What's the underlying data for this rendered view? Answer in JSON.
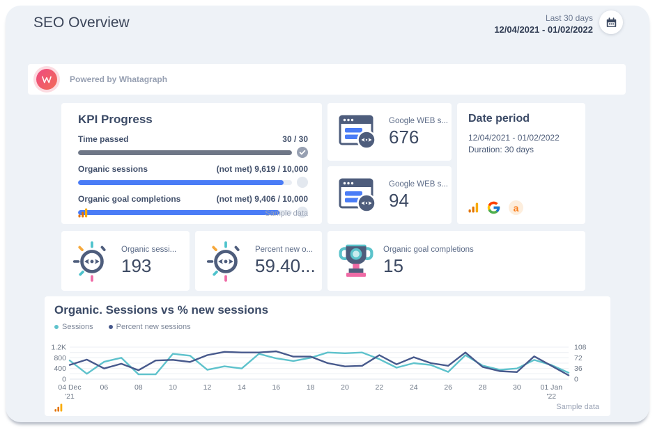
{
  "header": {
    "title": "SEO Overview",
    "range_label": "Last 30 days",
    "range_dates": "12/04/2021 - 01/02/2022"
  },
  "powered_bar": {
    "text": "Powered by Whatagraph"
  },
  "kpi_card": {
    "title": "KPI Progress",
    "rows": [
      {
        "label": "Time passed",
        "value": "30 / 30",
        "pct": 100,
        "status": "met"
      },
      {
        "label": "Organic sessions",
        "value": "(not met) 9,619 / 10,000",
        "pct": 96.2,
        "status": "not met"
      },
      {
        "label": "Organic goal completions",
        "value": "(not met) 9,406 / 10,000",
        "pct": 94.1,
        "status": "not met"
      }
    ],
    "footer_note": "Sample data"
  },
  "stat_cards": {
    "web_sessions_1": {
      "label": "Google WEB s...",
      "value": "676"
    },
    "web_sessions_2": {
      "label": "Google WEB s...",
      "value": "94"
    },
    "organic_sessions": {
      "label": "Organic sessi...",
      "value": "193"
    },
    "percent_new": {
      "label": "Percent new o...",
      "value": "59.40..."
    },
    "goal_completions": {
      "label": "Organic goal completions",
      "value": "15"
    }
  },
  "date_period_card": {
    "title": "Date period",
    "range": "12/04/2021 - 01/02/2022",
    "duration": "Duration: 30 days",
    "ahrefs_letter": "a"
  },
  "chart_card": {
    "title": "Organic. Sessions vs % new sessions",
    "legend": [
      {
        "label": "Sessions",
        "color": "#5ec2cc"
      },
      {
        "label": "Percent new sessions",
        "color": "#47598c"
      }
    ],
    "footer_note": "Sample data"
  },
  "chart_data": {
    "type": "line",
    "title": "Organic. Sessions vs % new sessions",
    "x": [
      "Dec 04",
      "Dec 05",
      "Dec 06",
      "Dec 07",
      "Dec 08",
      "Dec 09",
      "Dec 10",
      "Dec 11",
      "Dec 12",
      "Dec 13",
      "Dec 14",
      "Dec 15",
      "Dec 16",
      "Dec 17",
      "Dec 18",
      "Dec 19",
      "Dec 20",
      "Dec 21",
      "Dec 22",
      "Dec 23",
      "Dec 24",
      "Dec 25",
      "Dec 26",
      "Dec 27",
      "Dec 28",
      "Dec 29",
      "Dec 30",
      "Dec 31",
      "Jan 01",
      "Jan 02"
    ],
    "series": [
      {
        "name": "Sessions",
        "axis": "left",
        "color": "#5ec2cc",
        "values": [
          700,
          200,
          650,
          800,
          180,
          180,
          950,
          880,
          350,
          480,
          400,
          950,
          780,
          680,
          800,
          1000,
          970,
          1000,
          750,
          430,
          600,
          530,
          270,
          900,
          510,
          350,
          400,
          720,
          530,
          240
        ]
      },
      {
        "name": "Percent new sessions",
        "axis": "right",
        "color": "#47598c",
        "values": [
          48,
          66,
          36,
          52,
          30,
          63,
          65,
          58,
          81,
          92,
          90,
          90,
          94,
          76,
          76,
          54,
          43,
          45,
          81,
          50,
          74,
          54,
          45,
          90,
          41,
          27,
          24,
          77,
          45,
          13
        ]
      }
    ],
    "left_axis": {
      "ticks": [
        "0",
        "400",
        "800",
        "1.2K"
      ],
      "range": [
        0,
        1200
      ]
    },
    "right_axis": {
      "ticks": [
        "0",
        "36",
        "72",
        "108"
      ],
      "range": [
        0,
        108
      ]
    },
    "x_ticks": [
      {
        "i": 0,
        "line1": "04 Dec",
        "line2": "'21"
      },
      {
        "i": 2,
        "line1": "06"
      },
      {
        "i": 4,
        "line1": "08"
      },
      {
        "i": 6,
        "line1": "10"
      },
      {
        "i": 8,
        "line1": "12"
      },
      {
        "i": 10,
        "line1": "14"
      },
      {
        "i": 12,
        "line1": "16"
      },
      {
        "i": 14,
        "line1": "18"
      },
      {
        "i": 16,
        "line1": "20"
      },
      {
        "i": 18,
        "line1": "22"
      },
      {
        "i": 20,
        "line1": "24"
      },
      {
        "i": 22,
        "line1": "26"
      },
      {
        "i": 24,
        "line1": "28"
      },
      {
        "i": 26,
        "line1": "30"
      },
      {
        "i": 28,
        "line1": "01 Jan",
        "line2": "'22"
      }
    ],
    "grid": true,
    "legend_position": "top-left"
  },
  "colors": {
    "accent_blue": "#4a7cf6",
    "teal": "#5ec2cc",
    "line_navy": "#47598c",
    "slate_icon": "#4e5d7c",
    "orange": "#f9ab00",
    "orange_dark": "#e37400",
    "pink": "#ef6aa5",
    "container_bg": "#eef2f7",
    "text_navy": "#3b4a66"
  }
}
